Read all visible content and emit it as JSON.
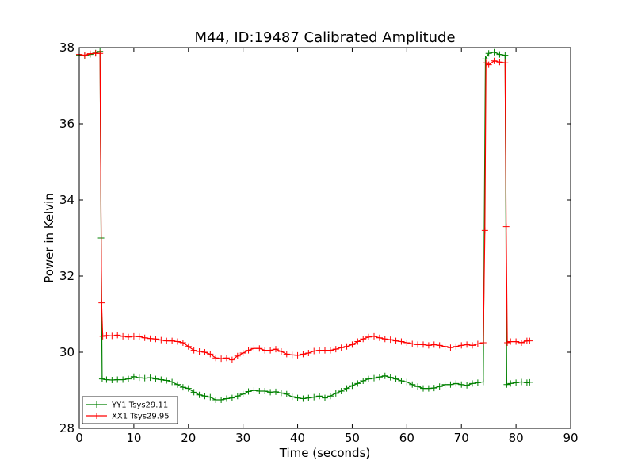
{
  "chart_data": {
    "type": "line",
    "title": "M44, ID:19487 Calibrated Amplitude",
    "xlabel": "Time (seconds)",
    "ylabel": "Power in Kelvin",
    "xlim": [
      0,
      90
    ],
    "ylim": [
      28,
      38
    ],
    "xticks": [
      "0",
      "10",
      "20",
      "30",
      "40",
      "50",
      "60",
      "70",
      "80",
      "90"
    ],
    "yticks": [
      "28",
      "30",
      "32",
      "34",
      "36",
      "38"
    ],
    "grid": false,
    "legend_position": "lower-left",
    "marker": "+",
    "series": [
      {
        "name": "YY1 Tsys29.11",
        "color": "#008000",
        "points": [
          [
            0,
            37.8
          ],
          [
            1,
            37.78
          ],
          [
            2,
            37.82
          ],
          [
            3,
            37.86
          ],
          [
            3.8,
            37.9
          ],
          [
            4.0,
            33.0
          ],
          [
            4.2,
            29.3
          ],
          [
            5,
            29.28
          ],
          [
            6,
            29.27
          ],
          [
            7,
            29.28
          ],
          [
            8,
            29.28
          ],
          [
            9,
            29.3
          ],
          [
            10,
            29.36
          ],
          [
            11,
            29.33
          ],
          [
            12,
            29.32
          ],
          [
            13,
            29.33
          ],
          [
            14,
            29.3
          ],
          [
            15,
            29.28
          ],
          [
            16,
            29.26
          ],
          [
            17,
            29.22
          ],
          [
            18,
            29.15
          ],
          [
            19,
            29.08
          ],
          [
            20,
            29.05
          ],
          [
            21,
            28.95
          ],
          [
            22,
            28.88
          ],
          [
            23,
            28.85
          ],
          [
            24,
            28.82
          ],
          [
            25,
            28.75
          ],
          [
            26,
            28.75
          ],
          [
            27,
            28.78
          ],
          [
            28,
            28.8
          ],
          [
            29,
            28.85
          ],
          [
            30,
            28.9
          ],
          [
            31,
            28.97
          ],
          [
            32,
            29.0
          ],
          [
            33,
            28.98
          ],
          [
            34,
            28.98
          ],
          [
            35,
            28.95
          ],
          [
            36,
            28.96
          ],
          [
            37,
            28.93
          ],
          [
            38,
            28.9
          ],
          [
            39,
            28.83
          ],
          [
            40,
            28.8
          ],
          [
            41,
            28.78
          ],
          [
            42,
            28.8
          ],
          [
            43,
            28.82
          ],
          [
            44,
            28.85
          ],
          [
            45,
            28.8
          ],
          [
            46,
            28.85
          ],
          [
            47,
            28.92
          ],
          [
            48,
            28.98
          ],
          [
            49,
            29.05
          ],
          [
            50,
            29.12
          ],
          [
            51,
            29.18
          ],
          [
            52,
            29.25
          ],
          [
            53,
            29.3
          ],
          [
            54,
            29.32
          ],
          [
            55,
            29.35
          ],
          [
            56,
            29.38
          ],
          [
            57,
            29.34
          ],
          [
            58,
            29.3
          ],
          [
            59,
            29.25
          ],
          [
            60,
            29.22
          ],
          [
            61,
            29.15
          ],
          [
            62,
            29.1
          ],
          [
            63,
            29.05
          ],
          [
            64,
            29.05
          ],
          [
            65,
            29.06
          ],
          [
            66,
            29.1
          ],
          [
            67,
            29.15
          ],
          [
            68,
            29.15
          ],
          [
            69,
            29.18
          ],
          [
            70,
            29.15
          ],
          [
            71,
            29.13
          ],
          [
            72,
            29.18
          ],
          [
            73,
            29.2
          ],
          [
            74.0,
            29.22
          ],
          [
            74.4,
            37.7
          ],
          [
            75,
            37.85
          ],
          [
            76,
            37.88
          ],
          [
            77,
            37.82
          ],
          [
            78.0,
            37.8
          ],
          [
            78.3,
            29.15
          ],
          [
            79,
            29.18
          ],
          [
            80,
            29.2
          ],
          [
            81,
            29.22
          ],
          [
            82,
            29.2
          ],
          [
            82.5,
            29.21
          ]
        ]
      },
      {
        "name": "XX1 Tsys29.95",
        "color": "#ff0000",
        "points": [
          [
            0,
            37.82
          ],
          [
            1,
            37.8
          ],
          [
            2,
            37.84
          ],
          [
            3,
            37.85
          ],
          [
            3.8,
            37.85
          ],
          [
            4.1,
            31.3
          ],
          [
            4.3,
            30.42
          ],
          [
            5,
            30.44
          ],
          [
            6,
            30.43
          ],
          [
            7,
            30.45
          ],
          [
            8,
            30.42
          ],
          [
            9,
            30.4
          ],
          [
            10,
            30.42
          ],
          [
            11,
            30.41
          ],
          [
            12,
            30.38
          ],
          [
            13,
            30.36
          ],
          [
            14,
            30.35
          ],
          [
            15,
            30.32
          ],
          [
            16,
            30.3
          ],
          [
            17,
            30.3
          ],
          [
            18,
            30.28
          ],
          [
            19,
            30.25
          ],
          [
            20,
            30.15
          ],
          [
            21,
            30.05
          ],
          [
            22,
            30.02
          ],
          [
            23,
            30.0
          ],
          [
            24,
            29.95
          ],
          [
            25,
            29.85
          ],
          [
            26,
            29.83
          ],
          [
            27,
            29.85
          ],
          [
            28,
            29.8
          ],
          [
            29,
            29.9
          ],
          [
            30,
            29.98
          ],
          [
            31,
            30.05
          ],
          [
            32,
            30.1
          ],
          [
            33,
            30.1
          ],
          [
            34,
            30.05
          ],
          [
            35,
            30.05
          ],
          [
            36,
            30.08
          ],
          [
            37,
            30.02
          ],
          [
            38,
            29.95
          ],
          [
            39,
            29.93
          ],
          [
            40,
            29.92
          ],
          [
            41,
            29.95
          ],
          [
            42,
            29.98
          ],
          [
            43,
            30.03
          ],
          [
            44,
            30.05
          ],
          [
            45,
            30.05
          ],
          [
            46,
            30.05
          ],
          [
            47,
            30.08
          ],
          [
            48,
            30.12
          ],
          [
            49,
            30.15
          ],
          [
            50,
            30.2
          ],
          [
            51,
            30.28
          ],
          [
            52,
            30.35
          ],
          [
            53,
            30.4
          ],
          [
            54,
            30.42
          ],
          [
            55,
            30.38
          ],
          [
            56,
            30.35
          ],
          [
            57,
            30.33
          ],
          [
            58,
            30.3
          ],
          [
            59,
            30.28
          ],
          [
            60,
            30.25
          ],
          [
            61,
            30.22
          ],
          [
            62,
            30.2
          ],
          [
            63,
            30.2
          ],
          [
            64,
            30.18
          ],
          [
            65,
            30.2
          ],
          [
            66,
            30.18
          ],
          [
            67,
            30.15
          ],
          [
            68,
            30.12
          ],
          [
            69,
            30.15
          ],
          [
            70,
            30.18
          ],
          [
            71,
            30.2
          ],
          [
            72,
            30.18
          ],
          [
            73,
            30.22
          ],
          [
            74.0,
            30.25
          ],
          [
            74.3,
            33.2
          ],
          [
            74.5,
            37.6
          ],
          [
            75,
            37.55
          ],
          [
            76,
            37.65
          ],
          [
            77,
            37.62
          ],
          [
            78.0,
            37.6
          ],
          [
            78.2,
            33.3
          ],
          [
            78.4,
            30.25
          ],
          [
            79,
            30.28
          ],
          [
            80,
            30.28
          ],
          [
            81,
            30.25
          ],
          [
            82,
            30.3
          ],
          [
            82.5,
            30.3
          ]
        ]
      }
    ]
  }
}
